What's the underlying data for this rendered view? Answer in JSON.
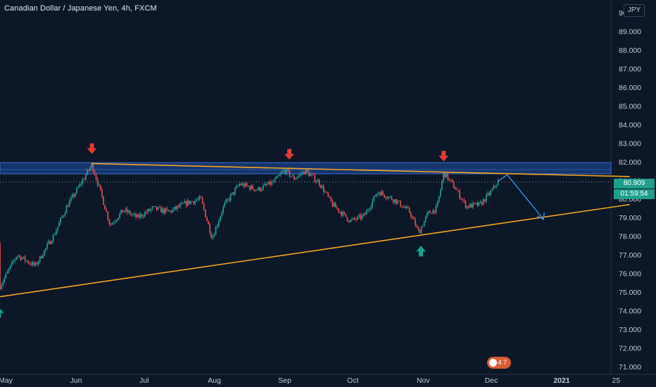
{
  "header": {
    "title": "Canadian Dollar / Japanese Yen, 4h, FXCM"
  },
  "currency_button": "JPY",
  "price_tags": {
    "last_price": "80.909",
    "countdown": "01:59:54"
  },
  "events_badge": "4 7",
  "colors": {
    "background": "#0c1728",
    "up": "#26a69a",
    "down": "#ef5350",
    "trendline": "#f5a623",
    "zone": "#1d4ea3",
    "arrow_down": "#e53935",
    "arrow_up": "#13a38a",
    "projection": "#3d8eea"
  },
  "chart_data": {
    "type": "candlestick",
    "title": "Canadian Dollar / Japanese Yen, 4h, FXCM",
    "ylim": [
      71.0,
      90.0
    ],
    "y_ticks": [
      "71.000",
      "72.000",
      "73.000",
      "74.000",
      "75.000",
      "76.000",
      "77.000",
      "78.000",
      "79.000",
      "80.000",
      "81.000",
      "82.000",
      "83.000",
      "84.000",
      "85.000",
      "86.000",
      "87.000",
      "88.000",
      "89.000",
      "90.000"
    ],
    "x_ticks": [
      {
        "label": "May",
        "date": "2020-05-01"
      },
      {
        "label": "Jun",
        "date": "2020-06-01"
      },
      {
        "label": "Jul",
        "date": "2020-07-01"
      },
      {
        "label": "Aug",
        "date": "2020-08-01"
      },
      {
        "label": "Sep",
        "date": "2020-09-01"
      },
      {
        "label": "Oct",
        "date": "2020-10-01"
      },
      {
        "label": "Nov",
        "date": "2020-11-01"
      },
      {
        "label": "Dec",
        "date": "2020-12-01"
      },
      {
        "label": "2021",
        "date": "2021-01-01"
      },
      {
        "label": "25",
        "date": "2021-01-25"
      }
    ],
    "last_price": 80.909,
    "price_path": [
      {
        "date": "2020-04-20",
        "close": 77.6
      },
      {
        "date": "2020-04-28",
        "close": 75.2
      },
      {
        "date": "2020-05-06",
        "close": 77.0
      },
      {
        "date": "2020-05-14",
        "close": 76.4
      },
      {
        "date": "2020-05-22",
        "close": 78.0
      },
      {
        "date": "2020-05-28",
        "close": 79.6
      },
      {
        "date": "2020-06-03",
        "close": 80.8
      },
      {
        "date": "2020-06-08",
        "close": 81.85
      },
      {
        "date": "2020-06-12",
        "close": 80.3
      },
      {
        "date": "2020-06-16",
        "close": 78.6
      },
      {
        "date": "2020-06-22",
        "close": 79.4
      },
      {
        "date": "2020-06-28",
        "close": 79.0
      },
      {
        "date": "2020-07-05",
        "close": 79.5
      },
      {
        "date": "2020-07-12",
        "close": 79.3
      },
      {
        "date": "2020-07-20",
        "close": 79.8
      },
      {
        "date": "2020-07-26",
        "close": 80.0
      },
      {
        "date": "2020-07-31",
        "close": 77.9
      },
      {
        "date": "2020-08-05",
        "close": 79.6
      },
      {
        "date": "2020-08-12",
        "close": 80.8
      },
      {
        "date": "2020-08-20",
        "close": 80.5
      },
      {
        "date": "2020-08-27",
        "close": 80.9
      },
      {
        "date": "2020-09-01",
        "close": 81.55
      },
      {
        "date": "2020-09-05",
        "close": 81.1
      },
      {
        "date": "2020-09-10",
        "close": 81.5
      },
      {
        "date": "2020-09-16",
        "close": 80.9
      },
      {
        "date": "2020-09-22",
        "close": 79.7
      },
      {
        "date": "2020-09-30",
        "close": 78.8
      },
      {
        "date": "2020-10-06",
        "close": 79.1
      },
      {
        "date": "2020-10-12",
        "close": 80.4
      },
      {
        "date": "2020-10-20",
        "close": 79.9
      },
      {
        "date": "2020-10-26",
        "close": 79.3
      },
      {
        "date": "2020-10-30",
        "close": 78.2
      },
      {
        "date": "2020-11-03",
        "close": 79.2
      },
      {
        "date": "2020-11-07",
        "close": 79.5
      },
      {
        "date": "2020-11-10",
        "close": 81.4
      },
      {
        "date": "2020-11-15",
        "close": 80.6
      },
      {
        "date": "2020-11-20",
        "close": 79.6
      },
      {
        "date": "2020-11-26",
        "close": 79.7
      },
      {
        "date": "2020-12-01",
        "close": 80.4
      },
      {
        "date": "2020-12-04",
        "close": 80.95
      }
    ],
    "annotations": {
      "resistance_zone": {
        "from": 81.35,
        "to": 81.95
      },
      "dotted_level": 80.909,
      "upper_trendline": [
        {
          "date": "2020-06-08",
          "value": 81.9
        },
        {
          "date": "2021-01-31",
          "value": 81.2
        }
      ],
      "lower_trendline": [
        {
          "date": "2020-04-20",
          "value": 74.6
        },
        {
          "date": "2021-01-31",
          "value": 79.7
        }
      ],
      "down_arrows": [
        {
          "date": "2020-06-08",
          "value": 81.85
        },
        {
          "date": "2020-09-03",
          "value": 81.55
        },
        {
          "date": "2020-11-10",
          "value": 81.45
        }
      ],
      "up_arrows": [
        {
          "date": "2020-04-28",
          "value": 74.9
        },
        {
          "date": "2020-10-31",
          "value": 78.2
        }
      ],
      "projection": [
        {
          "date": "2020-12-08",
          "value": 81.3
        },
        {
          "date": "2020-12-24",
          "value": 78.9
        }
      ]
    }
  }
}
